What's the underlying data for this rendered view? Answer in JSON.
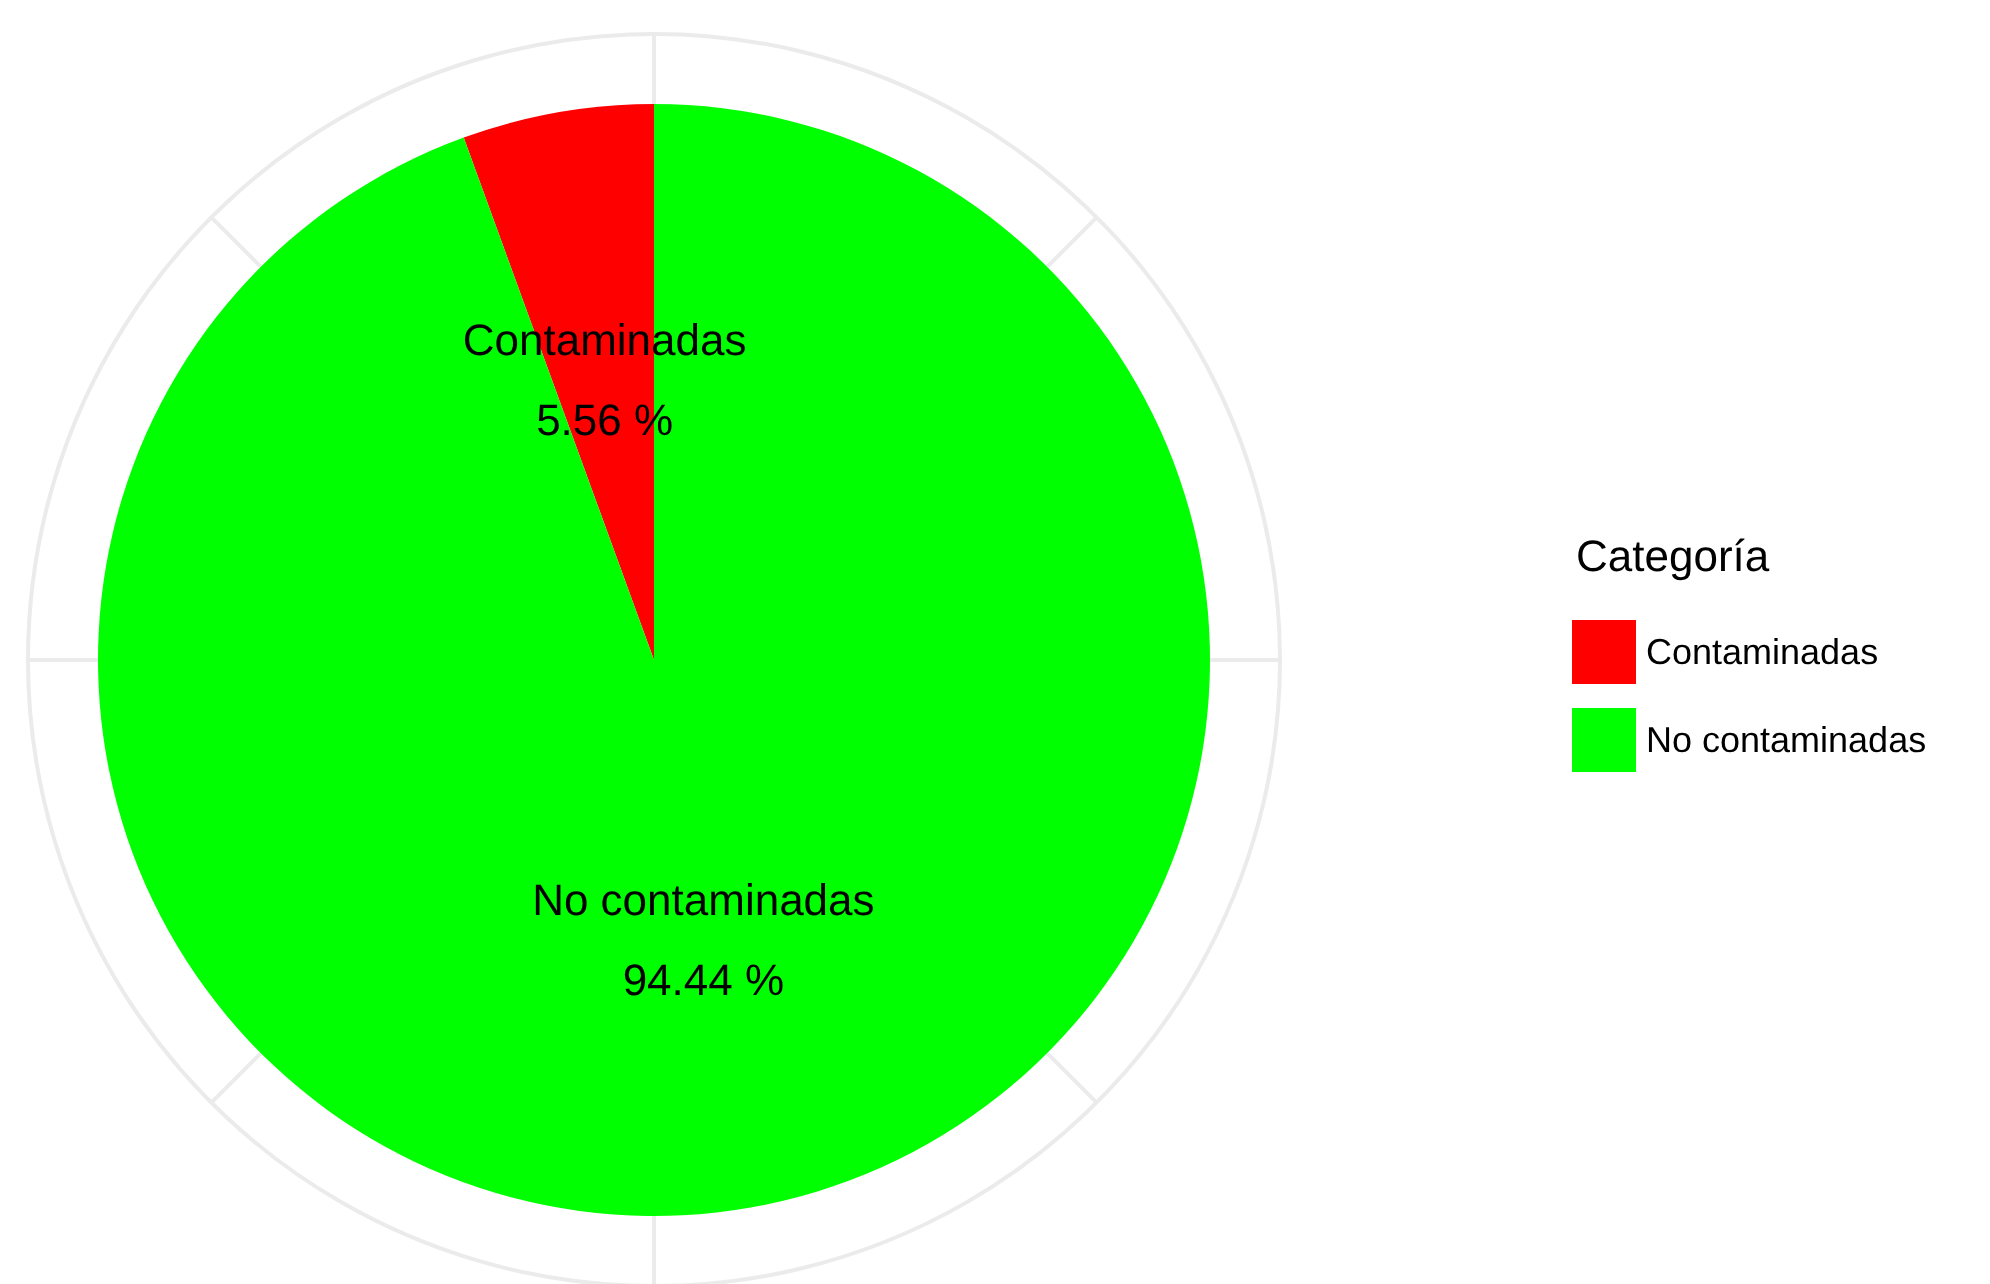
{
  "chart_data": {
    "type": "pie",
    "legend_title": "Categoría",
    "categories": [
      "Contaminadas",
      "No contaminadas"
    ],
    "values": [
      5.56,
      94.44
    ],
    "value_labels": [
      "5.56 %",
      "94.44 %"
    ],
    "colors": [
      "#ff0000",
      "#00ff00"
    ],
    "legend": "right",
    "grid": true
  }
}
